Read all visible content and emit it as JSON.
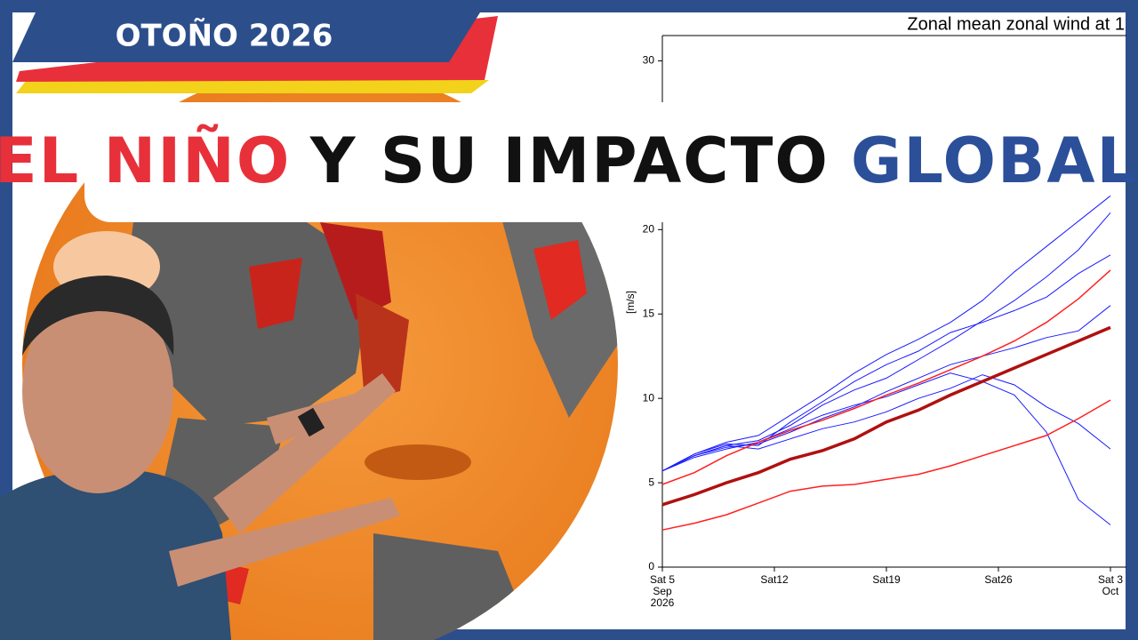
{
  "banner": {
    "text": "OTOÑO 2026"
  },
  "headline": {
    "part1": "EL NIÑO",
    "part2": "Y SU IMPACTO",
    "part3": "GLOBAL"
  },
  "chart_data": {
    "type": "line",
    "title": "Zonal mean zonal wind at 1",
    "ylabel": "[m/s]",
    "x": [
      "2026-09-05",
      "2026-09-07",
      "2026-09-09",
      "2026-09-11",
      "2026-09-13",
      "2026-09-15",
      "2026-09-17",
      "2026-09-19",
      "2026-09-21",
      "2026-09-23",
      "2026-09-25",
      "2026-09-27",
      "2026-09-29",
      "2026-10-01",
      "2026-10-03"
    ],
    "xlim": [
      "2026-09-05",
      "2026-10-04"
    ],
    "xticks": [
      {
        "value": "2026-09-05",
        "label": [
          "Sat 5",
          "Sep",
          "2026"
        ]
      },
      {
        "value": "2026-09-12",
        "label": [
          "Sat12"
        ]
      },
      {
        "value": "2026-09-19",
        "label": [
          "Sat19"
        ]
      },
      {
        "value": "2026-09-26",
        "label": [
          "Sat26"
        ]
      },
      {
        "value": "2026-10-03",
        "label": [
          "Sat 3",
          "Oct"
        ]
      }
    ],
    "ylim": [
      0,
      31.5
    ],
    "yticks": [
      0,
      5,
      10,
      15,
      20,
      30
    ],
    "series": [
      {
        "color": "#1a1aff",
        "width": 1,
        "values": [
          5.7,
          6.6,
          7.2,
          7.5,
          8.4,
          9.6,
          10.5,
          11.2,
          12.3,
          13.4,
          14.6,
          15.8,
          17.2,
          18.8,
          21.0
        ]
      },
      {
        "color": "#1a1aff",
        "width": 1,
        "values": [
          5.7,
          6.5,
          7.0,
          7.4,
          8.2,
          9.0,
          9.6,
          10.1,
          10.8,
          11.5,
          11.0,
          10.2,
          8.0,
          4.0,
          2.5
        ]
      },
      {
        "color": "#1a1aff",
        "width": 1,
        "values": [
          5.7,
          6.7,
          7.3,
          7.2,
          8.6,
          9.8,
          11.0,
          12.0,
          12.8,
          13.9,
          14.5,
          15.2,
          16.0,
          17.4,
          18.5
        ]
      },
      {
        "color": "#1a1aff",
        "width": 1,
        "values": [
          5.7,
          6.6,
          7.1,
          7.3,
          8.0,
          8.8,
          9.5,
          10.4,
          11.2,
          12.0,
          12.5,
          13.0,
          13.6,
          14.0,
          15.5
        ]
      },
      {
        "color": "#1a1aff",
        "width": 1,
        "values": [
          5.7,
          6.6,
          7.2,
          7.0,
          7.6,
          8.2,
          8.6,
          9.2,
          10.0,
          10.6,
          11.4,
          10.8,
          9.5,
          8.5,
          7.0
        ]
      },
      {
        "color": "#1a1aff",
        "width": 1,
        "values": [
          5.7,
          6.7,
          7.4,
          7.8,
          9.0,
          10.2,
          11.5,
          12.6,
          13.5,
          14.5,
          15.8,
          17.5,
          19.0,
          20.5,
          22.0
        ]
      },
      {
        "color": "#ff2020",
        "width": 1.5,
        "values": [
          4.9,
          5.6,
          6.6,
          7.4,
          8.1,
          8.7,
          9.4,
          10.2,
          10.9,
          11.7,
          12.5,
          13.4,
          14.5,
          15.9,
          17.6
        ]
      },
      {
        "color": "#ff2020",
        "width": 1.5,
        "values": [
          2.2,
          2.6,
          3.1,
          3.8,
          4.5,
          4.8,
          4.9,
          5.2,
          5.5,
          6.0,
          6.6,
          7.2,
          7.8,
          8.8,
          9.9
        ]
      },
      {
        "color": "#b01010",
        "width": 3.5,
        "values": [
          3.7,
          4.3,
          5.0,
          5.6,
          6.4,
          6.9,
          7.6,
          8.6,
          9.3,
          10.2,
          11.0,
          11.8,
          12.6,
          13.4,
          14.2
        ]
      }
    ]
  }
}
